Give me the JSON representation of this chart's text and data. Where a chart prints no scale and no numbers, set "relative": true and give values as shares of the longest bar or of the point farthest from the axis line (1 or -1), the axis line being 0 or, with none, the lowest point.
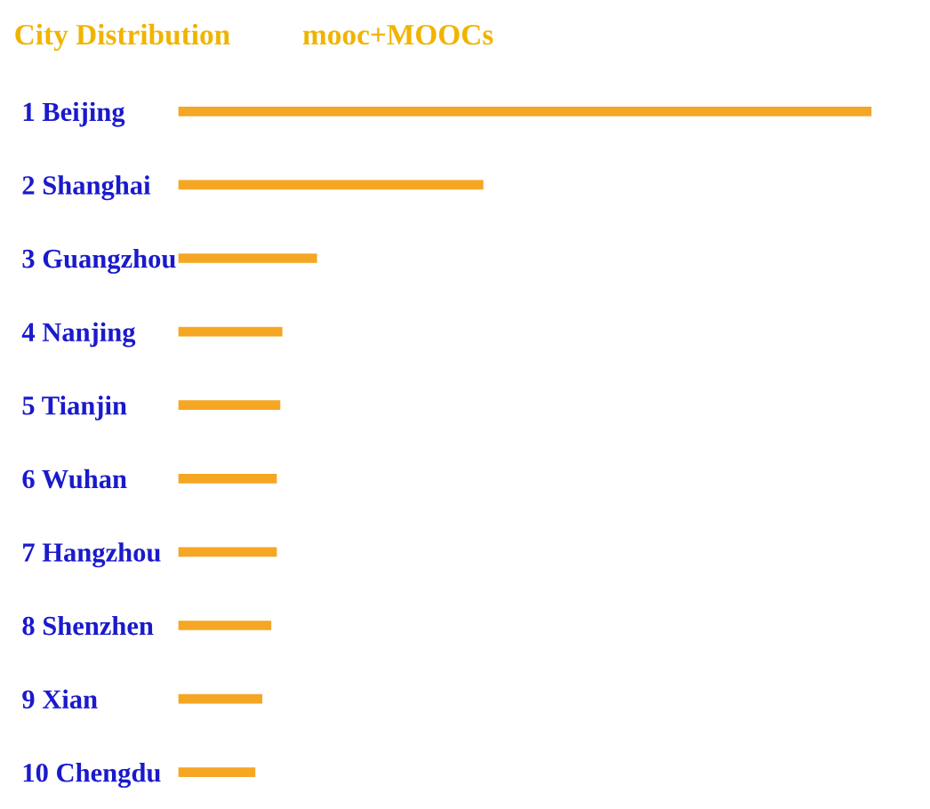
{
  "chart_data": {
    "type": "bar",
    "orientation": "horizontal",
    "relative": true,
    "title": "City Distribution",
    "subtitle": "mooc+MOOCs",
    "categories": [
      "1 Beijing",
      "2 Shanghai",
      "3 Guangzhou",
      "4 Nanjing",
      "5 Tianjin",
      "6 Wuhan",
      "7 Hangzhou",
      "8 Shenzhen",
      "9 Xian",
      "10 Chengdu"
    ],
    "values": [
      1,
      0.44,
      0.2,
      0.15,
      0.147,
      0.142,
      0.142,
      0.134,
      0.121,
      0.111
    ],
    "color": "#f5a623"
  }
}
